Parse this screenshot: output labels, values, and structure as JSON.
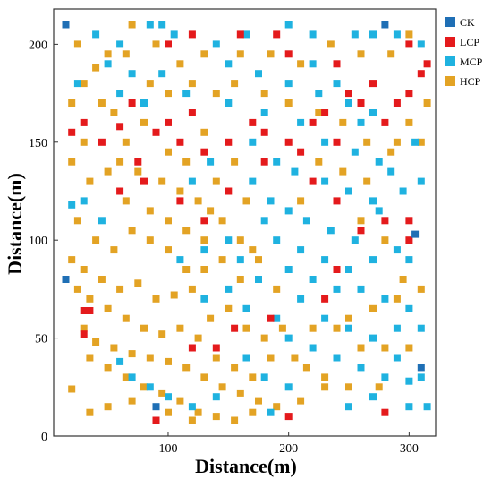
{
  "chart_data": {
    "type": "scatter",
    "xlabel": "Distance(m)",
    "ylabel": "Distance(m)",
    "xlim": [
      5,
      322
    ],
    "ylim": [
      0,
      218
    ],
    "x_ticks": [
      100,
      200,
      300
    ],
    "y_ticks": [
      0,
      50,
      100,
      150,
      200
    ],
    "grid": false,
    "legend_position": "right",
    "colors": {
      "CK": "#1f6fb5",
      "LCP": "#e41a1c",
      "MCP": "#1fb2e0",
      "HCP": "#e3a324"
    },
    "series": [
      {
        "name": "CK",
        "points": [
          [
            15,
            210
          ],
          [
            310,
            35
          ],
          [
            90,
            15
          ],
          [
            280,
            210
          ],
          [
            305,
            103
          ],
          [
            15,
            80
          ]
        ]
      },
      {
        "name": "LCP",
        "points": [
          [
            20,
            155
          ],
          [
            30,
            160
          ],
          [
            45,
            150
          ],
          [
            60,
            158
          ],
          [
            70,
            170
          ],
          [
            75,
            140
          ],
          [
            90,
            155
          ],
          [
            100,
            160
          ],
          [
            110,
            150
          ],
          [
            120,
            165
          ],
          [
            130,
            145
          ],
          [
            150,
            150
          ],
          [
            170,
            160
          ],
          [
            180,
            155
          ],
          [
            200,
            150
          ],
          [
            210,
            145
          ],
          [
            220,
            160
          ],
          [
            230,
            165
          ],
          [
            240,
            150
          ],
          [
            250,
            175
          ],
          [
            260,
            170
          ],
          [
            270,
            180
          ],
          [
            280,
            160
          ],
          [
            290,
            170
          ],
          [
            300,
            175
          ],
          [
            310,
            185
          ],
          [
            315,
            190
          ],
          [
            220,
            130
          ],
          [
            240,
            120
          ],
          [
            260,
            105
          ],
          [
            280,
            110
          ],
          [
            300,
            110
          ],
          [
            300,
            100
          ],
          [
            110,
            120
          ],
          [
            130,
            110
          ],
          [
            150,
            125
          ],
          [
            180,
            140
          ],
          [
            200,
            195
          ],
          [
            240,
            190
          ],
          [
            300,
            200
          ],
          [
            30,
            64
          ],
          [
            35,
            64
          ],
          [
            30,
            52
          ],
          [
            185,
            60
          ],
          [
            230,
            70
          ],
          [
            240,
            85
          ],
          [
            120,
            45
          ],
          [
            155,
            55
          ],
          [
            140,
            45
          ],
          [
            200,
            10
          ],
          [
            90,
            8
          ],
          [
            280,
            12
          ],
          [
            60,
            125
          ],
          [
            80,
            130
          ],
          [
            100,
            200
          ],
          [
            120,
            205
          ],
          [
            160,
            205
          ],
          [
            190,
            205
          ]
        ]
      },
      {
        "name": "MCP",
        "points": [
          [
            40,
            205
          ],
          [
            60,
            200
          ],
          [
            85,
            210
          ],
          [
            95,
            210
          ],
          [
            105,
            205
          ],
          [
            140,
            200
          ],
          [
            165,
            205
          ],
          [
            200,
            210
          ],
          [
            220,
            205
          ],
          [
            255,
            205
          ],
          [
            270,
            205
          ],
          [
            290,
            205
          ],
          [
            310,
            200
          ],
          [
            150,
            190
          ],
          [
            175,
            185
          ],
          [
            200,
            180
          ],
          [
            225,
            175
          ],
          [
            250,
            170
          ],
          [
            270,
            165
          ],
          [
            180,
            165
          ],
          [
            210,
            160
          ],
          [
            230,
            150
          ],
          [
            255,
            145
          ],
          [
            275,
            140
          ],
          [
            150,
            170
          ],
          [
            170,
            150
          ],
          [
            190,
            140
          ],
          [
            205,
            135
          ],
          [
            230,
            130
          ],
          [
            250,
            125
          ],
          [
            270,
            120
          ],
          [
            170,
            130
          ],
          [
            185,
            120
          ],
          [
            200,
            115
          ],
          [
            215,
            110
          ],
          [
            235,
            105
          ],
          [
            255,
            100
          ],
          [
            180,
            110
          ],
          [
            190,
            100
          ],
          [
            210,
            95
          ],
          [
            230,
            90
          ],
          [
            250,
            85
          ],
          [
            270,
            90
          ],
          [
            290,
            95
          ],
          [
            300,
            90
          ],
          [
            200,
            85
          ],
          [
            220,
            80
          ],
          [
            240,
            75
          ],
          [
            260,
            75
          ],
          [
            280,
            70
          ],
          [
            300,
            65
          ],
          [
            210,
            70
          ],
          [
            230,
            60
          ],
          [
            250,
            55
          ],
          [
            270,
            50
          ],
          [
            290,
            55
          ],
          [
            310,
            55
          ],
          [
            220,
            45
          ],
          [
            240,
            40
          ],
          [
            260,
            35
          ],
          [
            280,
            30
          ],
          [
            300,
            28
          ],
          [
            300,
            15
          ],
          [
            315,
            15
          ],
          [
            250,
            15
          ],
          [
            270,
            20
          ],
          [
            290,
            40
          ],
          [
            310,
            30
          ],
          [
            160,
            90
          ],
          [
            175,
            80
          ],
          [
            190,
            60
          ],
          [
            200,
            50
          ],
          [
            165,
            40
          ],
          [
            180,
            30
          ],
          [
            200,
            25
          ],
          [
            185,
            12
          ],
          [
            140,
            20
          ],
          [
            120,
            15
          ],
          [
            100,
            20
          ],
          [
            85,
            25
          ],
          [
            70,
            30
          ],
          [
            60,
            38
          ],
          [
            130,
            70
          ],
          [
            150,
            75
          ],
          [
            165,
            65
          ],
          [
            150,
            100
          ],
          [
            130,
            95
          ],
          [
            110,
            90
          ],
          [
            120,
            130
          ],
          [
            135,
            140
          ],
          [
            115,
            175
          ],
          [
            95,
            185
          ],
          [
            80,
            170
          ],
          [
            70,
            185
          ],
          [
            60,
            175
          ],
          [
            50,
            190
          ],
          [
            25,
            180
          ],
          [
            30,
            120
          ],
          [
            45,
            110
          ],
          [
            20,
            118
          ],
          [
            275,
            115
          ],
          [
            295,
            125
          ],
          [
            310,
            130
          ],
          [
            305,
            150
          ],
          [
            285,
            135
          ],
          [
            260,
            160
          ],
          [
            240,
            180
          ],
          [
            220,
            190
          ]
        ]
      },
      {
        "name": "HCP",
        "points": [
          [
            25,
            200
          ],
          [
            50,
            195
          ],
          [
            70,
            210
          ],
          [
            90,
            200
          ],
          [
            110,
            190
          ],
          [
            130,
            195
          ],
          [
            160,
            195
          ],
          [
            185,
            195
          ],
          [
            210,
            190
          ],
          [
            235,
            200
          ],
          [
            260,
            195
          ],
          [
            285,
            195
          ],
          [
            300,
            205
          ],
          [
            30,
            180
          ],
          [
            45,
            170
          ],
          [
            55,
            165
          ],
          [
            65,
            150
          ],
          [
            80,
            160
          ],
          [
            100,
            145
          ],
          [
            115,
            140
          ],
          [
            130,
            155
          ],
          [
            140,
            130
          ],
          [
            155,
            140
          ],
          [
            165,
            120
          ],
          [
            20,
            140
          ],
          [
            35,
            130
          ],
          [
            50,
            135
          ],
          [
            65,
            120
          ],
          [
            85,
            115
          ],
          [
            100,
            110
          ],
          [
            115,
            105
          ],
          [
            130,
            100
          ],
          [
            145,
            110
          ],
          [
            160,
            100
          ],
          [
            170,
            95
          ],
          [
            25,
            110
          ],
          [
            40,
            100
          ],
          [
            55,
            95
          ],
          [
            70,
            105
          ],
          [
            85,
            100
          ],
          [
            100,
            95
          ],
          [
            115,
            85
          ],
          [
            130,
            85
          ],
          [
            145,
            90
          ],
          [
            160,
            80
          ],
          [
            175,
            90
          ],
          [
            190,
            75
          ],
          [
            20,
            90
          ],
          [
            30,
            85
          ],
          [
            45,
            80
          ],
          [
            60,
            75
          ],
          [
            75,
            78
          ],
          [
            90,
            70
          ],
          [
            105,
            72
          ],
          [
            120,
            75
          ],
          [
            135,
            60
          ],
          [
            150,
            65
          ],
          [
            165,
            55
          ],
          [
            180,
            50
          ],
          [
            25,
            75
          ],
          [
            35,
            70
          ],
          [
            50,
            65
          ],
          [
            65,
            60
          ],
          [
            80,
            55
          ],
          [
            95,
            52
          ],
          [
            110,
            55
          ],
          [
            125,
            50
          ],
          [
            140,
            40
          ],
          [
            155,
            35
          ],
          [
            170,
            30
          ],
          [
            185,
            40
          ],
          [
            30,
            55
          ],
          [
            40,
            48
          ],
          [
            55,
            45
          ],
          [
            70,
            42
          ],
          [
            85,
            40
          ],
          [
            100,
            38
          ],
          [
            115,
            35
          ],
          [
            130,
            30
          ],
          [
            145,
            25
          ],
          [
            160,
            22
          ],
          [
            175,
            18
          ],
          [
            35,
            40
          ],
          [
            50,
            35
          ],
          [
            65,
            30
          ],
          [
            80,
            25
          ],
          [
            95,
            22
          ],
          [
            110,
            18
          ],
          [
            125,
            12
          ],
          [
            140,
            10
          ],
          [
            155,
            8
          ],
          [
            170,
            12
          ],
          [
            190,
            15
          ],
          [
            210,
            18
          ],
          [
            230,
            25
          ],
          [
            20,
            24
          ],
          [
            35,
            12
          ],
          [
            50,
            15
          ],
          [
            70,
            18
          ],
          [
            100,
            12
          ],
          [
            120,
            8
          ],
          [
            210,
            120
          ],
          [
            225,
            140
          ],
          [
            245,
            135
          ],
          [
            265,
            130
          ],
          [
            285,
            145
          ],
          [
            300,
            160
          ],
          [
            315,
            170
          ],
          [
            260,
            110
          ],
          [
            280,
            100
          ],
          [
            295,
            80
          ],
          [
            310,
            75
          ],
          [
            250,
            60
          ],
          [
            270,
            65
          ],
          [
            290,
            70
          ],
          [
            240,
            55
          ],
          [
            220,
            55
          ],
          [
            260,
            45
          ],
          [
            280,
            45
          ],
          [
            300,
            45
          ],
          [
            230,
            30
          ],
          [
            250,
            25
          ],
          [
            275,
            25
          ],
          [
            195,
            55
          ],
          [
            205,
            40
          ],
          [
            215,
            35
          ],
          [
            140,
            175
          ],
          [
            155,
            180
          ],
          [
            180,
            175
          ],
          [
            200,
            170
          ],
          [
            225,
            165
          ],
          [
            245,
            160
          ],
          [
            265,
            150
          ],
          [
            290,
            150
          ],
          [
            310,
            150
          ],
          [
            120,
            180
          ],
          [
            100,
            175
          ],
          [
            85,
            180
          ],
          [
            65,
            195
          ],
          [
            40,
            188
          ],
          [
            20,
            170
          ],
          [
            30,
            150
          ],
          [
            60,
            140
          ],
          [
            75,
            135
          ],
          [
            95,
            130
          ],
          [
            110,
            125
          ],
          [
            125,
            120
          ],
          [
            135,
            115
          ]
        ]
      }
    ]
  }
}
